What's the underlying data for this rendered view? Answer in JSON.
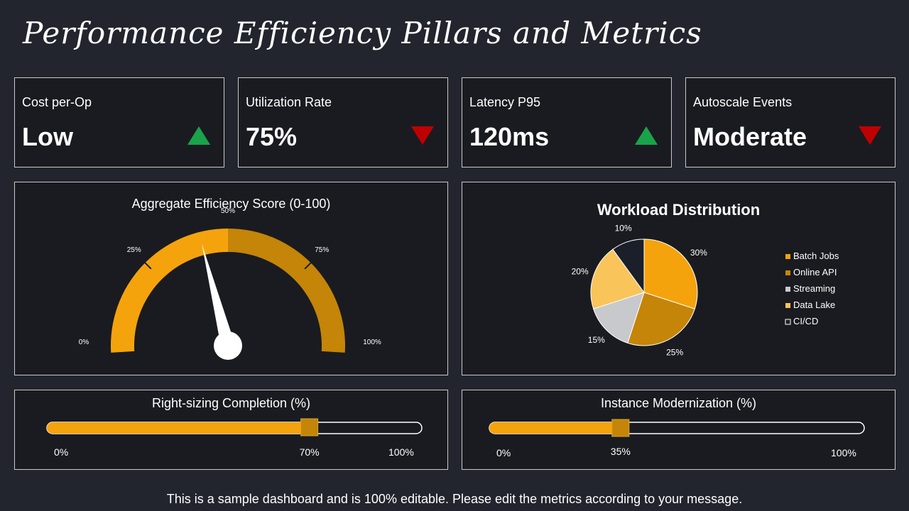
{
  "page": {
    "title": "Performance Efficiency Pillars and Metrics",
    "footer": "This is a sample dashboard and is 100% editable. Please edit the metrics according to your message."
  },
  "kpis": [
    {
      "label": "Cost per-Op",
      "value": "Low",
      "trend": "up",
      "color": "#1aa34a"
    },
    {
      "label": "Utilization Rate",
      "value": "75%",
      "trend": "down",
      "color": "#c00000"
    },
    {
      "label": "Latency P95",
      "value": "120ms",
      "trend": "up",
      "color": "#1aa34a"
    },
    {
      "label": "Autoscale Events",
      "value": "Moderate",
      "trend": "down",
      "color": "#c00000"
    }
  ],
  "colors": {
    "orange": "#f5a30c",
    "dark_orange": "#c48508",
    "gray": "#c8c9cc",
    "light_orange": "#f9c45a",
    "navy": "#1b1f2a",
    "panel_border": "#c9c9c9"
  },
  "chart_data": [
    {
      "type": "gauge",
      "title": "Aggregate Efficiency Score (0-100)",
      "min": 0,
      "max": 100,
      "value": 42,
      "ticks": [
        "0%",
        "25%",
        "50%",
        "75%",
        "100%"
      ]
    },
    {
      "type": "pie",
      "title": "Workload Distribution",
      "categories": [
        "Batch Jobs",
        "Online API",
        "Streaming",
        "Data Lake",
        "CI/CD"
      ],
      "values": [
        30,
        25,
        15,
        20,
        10
      ],
      "labels": [
        "30%",
        "25%",
        "15%",
        "20%",
        "10%"
      ],
      "colors": [
        "#f5a30c",
        "#c48508",
        "#c8c9cc",
        "#f9c45a",
        "#1b1f2a"
      ],
      "legend": "right"
    },
    {
      "type": "progress",
      "title": "Right-sizing Completion (%)",
      "value": 70,
      "min_label": "0%",
      "value_label": "70%",
      "max_label": "100%"
    },
    {
      "type": "progress",
      "title": "Instance Modernization (%)",
      "value": 35,
      "min_label": "0%",
      "value_label": "35%",
      "max_label": "100%"
    }
  ]
}
